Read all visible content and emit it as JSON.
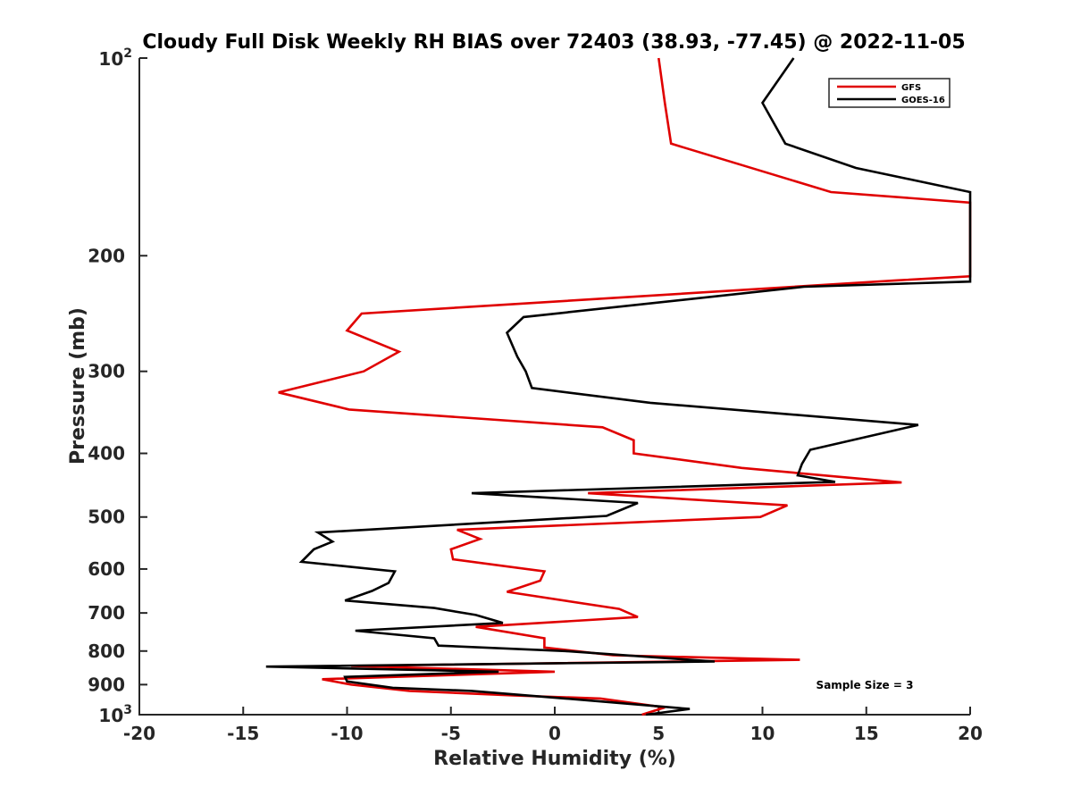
{
  "chart_data": {
    "type": "line",
    "title": "Cloudy Full Disk Weekly RH BIAS over 72403 (38.93, -77.45) @ 2022-11-05",
    "xlabel": "Relative Humidity (%)",
    "ylabel": "Pressure (mb)",
    "xlim": [
      -20,
      20
    ],
    "ylim": [
      100,
      1000
    ],
    "y_scale": "log",
    "y_direction": "reversed",
    "x_ticks": [
      "-20",
      "-15",
      "-10",
      "-5",
      "0",
      "5",
      "10",
      "15",
      "20"
    ],
    "y_ticks": [
      {
        "value": 100,
        "base": "10",
        "exp": "2"
      },
      {
        "value": 200,
        "label": "200"
      },
      {
        "value": 300,
        "label": "300"
      },
      {
        "value": 400,
        "label": "400"
      },
      {
        "value": 500,
        "label": "500"
      },
      {
        "value": 600,
        "label": "600"
      },
      {
        "value": 700,
        "label": "700"
      },
      {
        "value": 800,
        "label": "800"
      },
      {
        "value": 900,
        "label": "900"
      },
      {
        "value": 1000,
        "base": "10",
        "exp": "3"
      }
    ],
    "grid": false,
    "legend_position": "top-right",
    "annotation": "Sample Size = 3",
    "series": [
      {
        "name": "GFS",
        "color": "#e00000",
        "points": [
          [
            5.0,
            100
          ],
          [
            5.3,
            117
          ],
          [
            5.6,
            135
          ],
          [
            13.3,
            160
          ],
          [
            20,
            166
          ],
          [
            20,
            215
          ],
          [
            16.5,
            218
          ],
          [
            -9.3,
            245
          ],
          [
            -10.0,
            260
          ],
          [
            -7.5,
            280
          ],
          [
            -9.2,
            300
          ],
          [
            -13.3,
            323
          ],
          [
            -9.9,
            343
          ],
          [
            2.3,
            365
          ],
          [
            3.8,
            382
          ],
          [
            3.8,
            400
          ],
          [
            9.0,
            421
          ],
          [
            16.7,
            443
          ],
          [
            1.6,
            460
          ],
          [
            11.2,
            480
          ],
          [
            9.9,
            500
          ],
          [
            -4.7,
            523
          ],
          [
            -3.6,
            540
          ],
          [
            -5.0,
            560
          ],
          [
            -4.9,
            580
          ],
          [
            -0.5,
            605
          ],
          [
            -0.7,
            625
          ],
          [
            -2.3,
            650
          ],
          [
            3.1,
            690
          ],
          [
            4.0,
            710
          ],
          [
            -3.8,
            735
          ],
          [
            -0.5,
            765
          ],
          [
            -0.5,
            790
          ],
          [
            2.8,
            812
          ],
          [
            11.8,
            825
          ],
          [
            -9.8,
            843
          ],
          [
            0.0,
            860
          ],
          [
            -11.2,
            883
          ],
          [
            -9.8,
            900
          ],
          [
            -7.0,
            920
          ],
          [
            -2.0,
            935
          ],
          [
            2.2,
            945
          ],
          [
            5.3,
            975
          ],
          [
            4.2,
            1000
          ]
        ]
      },
      {
        "name": "GOES-16",
        "color": "#000000",
        "points": [
          [
            11.5,
            100
          ],
          [
            10.0,
            117
          ],
          [
            11.1,
            135
          ],
          [
            14.5,
            147
          ],
          [
            20,
            160
          ],
          [
            20,
            219
          ],
          [
            12.0,
            223
          ],
          [
            -1.5,
            248
          ],
          [
            -2.3,
            262
          ],
          [
            -1.8,
            285
          ],
          [
            -1.4,
            300
          ],
          [
            -1.1,
            318
          ],
          [
            4.6,
            335
          ],
          [
            17.5,
            362
          ],
          [
            12.3,
            395
          ],
          [
            11.9,
            415
          ],
          [
            11.7,
            432
          ],
          [
            13.5,
            442
          ],
          [
            -4.0,
            460
          ],
          [
            4.0,
            476
          ],
          [
            2.5,
            498
          ],
          [
            -11.4,
            528
          ],
          [
            -10.7,
            545
          ],
          [
            -11.6,
            560
          ],
          [
            -12.2,
            585
          ],
          [
            -7.7,
            605
          ],
          [
            -8.0,
            630
          ],
          [
            -8.8,
            648
          ],
          [
            -10.1,
            670
          ],
          [
            -5.8,
            688
          ],
          [
            -3.8,
            705
          ],
          [
            -2.5,
            725
          ],
          [
            -9.6,
            745
          ],
          [
            -5.8,
            765
          ],
          [
            -5.6,
            785
          ],
          [
            0.5,
            800
          ],
          [
            7.7,
            830
          ],
          [
            -13.9,
            845
          ],
          [
            -2.7,
            860
          ],
          [
            -10.1,
            876
          ],
          [
            -10.0,
            890
          ],
          [
            -7.8,
            910
          ],
          [
            -4.0,
            920
          ],
          [
            0.5,
            945
          ],
          [
            6.5,
            980
          ],
          [
            4.4,
            1000
          ]
        ]
      }
    ]
  }
}
